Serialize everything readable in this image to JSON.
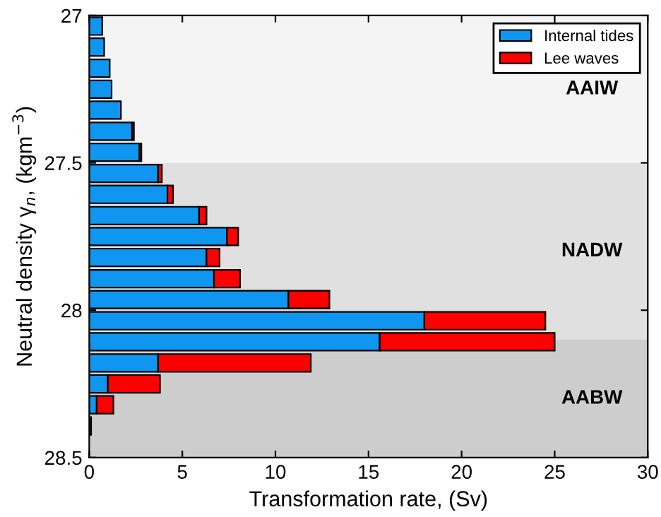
{
  "chart_data": {
    "type": "bar",
    "orientation": "horizontal",
    "stacked": true,
    "x": [
      27.036,
      27.107,
      27.179,
      27.25,
      27.321,
      27.393,
      27.464,
      27.536,
      27.607,
      27.679,
      27.75,
      27.821,
      27.893,
      27.964,
      28.036,
      28.107,
      28.179,
      28.25,
      28.321,
      28.393
    ],
    "series": [
      {
        "name": "Internal tides",
        "color": "#0f96f0",
        "values": [
          0.7,
          0.8,
          1.1,
          1.2,
          1.7,
          2.3,
          2.7,
          3.7,
          4.2,
          5.9,
          7.4,
          6.3,
          6.7,
          10.7,
          18.0,
          15.6,
          3.7,
          1.0,
          0.4,
          0.1
        ]
      },
      {
        "name": "Lee waves",
        "color": "#ff0000",
        "values": [
          null,
          null,
          null,
          null,
          null,
          0.1,
          0.1,
          0.2,
          0.3,
          0.4,
          0.6,
          0.7,
          1.4,
          2.2,
          6.5,
          9.4,
          8.2,
          2.8,
          0.9,
          null
        ]
      }
    ],
    "xlabel": "Transformation rate, (Sv)",
    "ylabel": "Neutral density γ$_{n}$, (kgm$^{−3}$)",
    "xlim": [
      0,
      30
    ],
    "xticks": [
      0,
      5,
      10,
      15,
      20,
      25,
      30
    ],
    "ylim": [
      28.5,
      27
    ],
    "yticks": [
      27,
      27.5,
      28,
      28.5
    ],
    "bands": [
      {
        "axis": "y",
        "from": 27,
        "to": 27.5,
        "label": "AAIW",
        "color": "#f4f4f4"
      },
      {
        "axis": "y",
        "from": 27.5,
        "to": 28.1,
        "label": "NADW",
        "color": "#e0e0e0"
      },
      {
        "axis": "y",
        "from": 28.1,
        "to": 28.5,
        "label": "AABW",
        "color": "#cdcdcd"
      }
    ],
    "grid": false,
    "legend": "top right"
  }
}
